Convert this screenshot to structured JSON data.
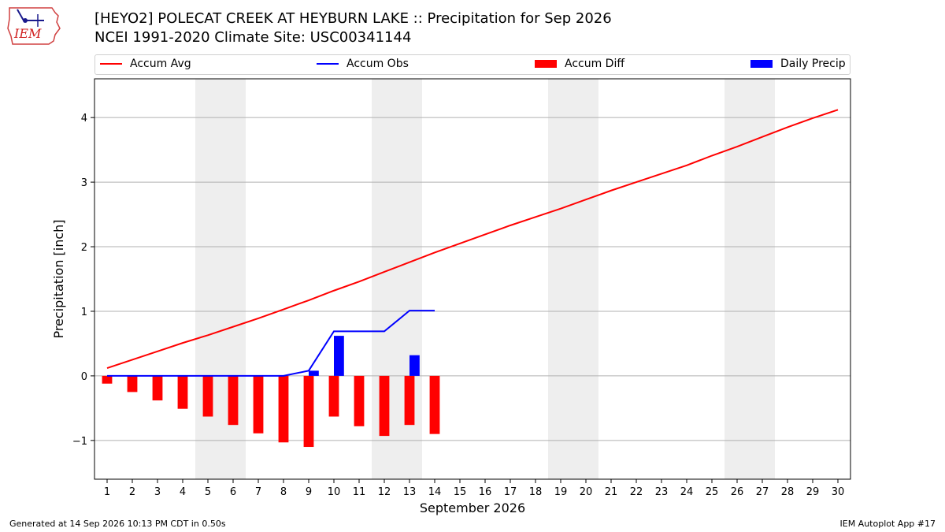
{
  "header": {
    "logo_text": "IEM",
    "title_line1": "[HEYO2] POLECAT CREEK  AT HEYBURN LAKE :: Precipitation for Sep 2026",
    "title_line2": "NCEI 1991-2020 Climate Site: USC00341144"
  },
  "legend": {
    "accum_avg": "Accum Avg",
    "accum_obs": "Accum Obs",
    "accum_diff": "Accum Diff",
    "daily_precip": "Daily Precip"
  },
  "colors": {
    "avg": "#ff0000",
    "obs": "#0000ff",
    "diff": "#ff0000",
    "daily": "#0000ff",
    "weekend_shade": "#eeeeee",
    "grid": "#b0b0b0"
  },
  "footer": {
    "generated": "Generated at 14 Sep 2026 10:13 PM CDT in 0.50s",
    "app": "IEM Autoplot App #17"
  },
  "chart_data": {
    "type": "line",
    "xlabel": "September 2026",
    "ylabel": "Precipitation [inch]",
    "xlim": [
      0.5,
      30.5
    ],
    "ylim": [
      -1.6,
      4.6
    ],
    "yticks": [
      -1,
      0,
      1,
      2,
      3,
      4
    ],
    "ytick_labels": [
      "−1",
      "0",
      "1",
      "2",
      "3",
      "4"
    ],
    "days": [
      1,
      2,
      3,
      4,
      5,
      6,
      7,
      8,
      9,
      10,
      11,
      12,
      13,
      14,
      15,
      16,
      17,
      18,
      19,
      20,
      21,
      22,
      23,
      24,
      25,
      26,
      27,
      28,
      29,
      30
    ],
    "weekend_spans": [
      [
        5,
        6
      ],
      [
        12,
        13
      ],
      [
        19,
        20
      ],
      [
        26,
        27
      ]
    ],
    "grid": true,
    "legend_placement": "top",
    "series": [
      {
        "name": "Accum Avg",
        "type": "line",
        "x": [
          1,
          2,
          3,
          4,
          5,
          6,
          7,
          8,
          9,
          10,
          11,
          12,
          13,
          14,
          15,
          16,
          17,
          18,
          19,
          20,
          21,
          22,
          23,
          24,
          25,
          26,
          27,
          28,
          29,
          30
        ],
        "values": [
          0.12,
          0.25,
          0.38,
          0.51,
          0.63,
          0.76,
          0.89,
          1.03,
          1.17,
          1.32,
          1.46,
          1.61,
          1.76,
          1.91,
          2.05,
          2.19,
          2.33,
          2.46,
          2.59,
          2.73,
          2.87,
          3.0,
          3.13,
          3.26,
          3.41,
          3.55,
          3.7,
          3.85,
          3.99,
          4.12
        ]
      },
      {
        "name": "Accum Obs",
        "type": "line",
        "x": [
          1,
          2,
          3,
          4,
          5,
          6,
          7,
          8,
          9,
          10,
          11,
          12,
          13,
          14
        ],
        "values": [
          0,
          0,
          0,
          0,
          0,
          0,
          0,
          0,
          0.08,
          0.69,
          0.69,
          0.69,
          1.01,
          1.01
        ]
      },
      {
        "name": "Accum Diff",
        "type": "bar",
        "x": [
          1,
          2,
          3,
          4,
          5,
          6,
          7,
          8,
          9,
          10,
          11,
          12,
          13,
          14
        ],
        "values": [
          -0.12,
          -0.25,
          -0.38,
          -0.51,
          -0.63,
          -0.76,
          -0.89,
          -1.03,
          -1.1,
          -0.63,
          -0.78,
          -0.93,
          -0.76,
          -0.9
        ]
      },
      {
        "name": "Daily Precip",
        "type": "bar",
        "x": [
          9,
          10,
          13
        ],
        "values": [
          0.08,
          0.62,
          0.32
        ]
      }
    ]
  }
}
